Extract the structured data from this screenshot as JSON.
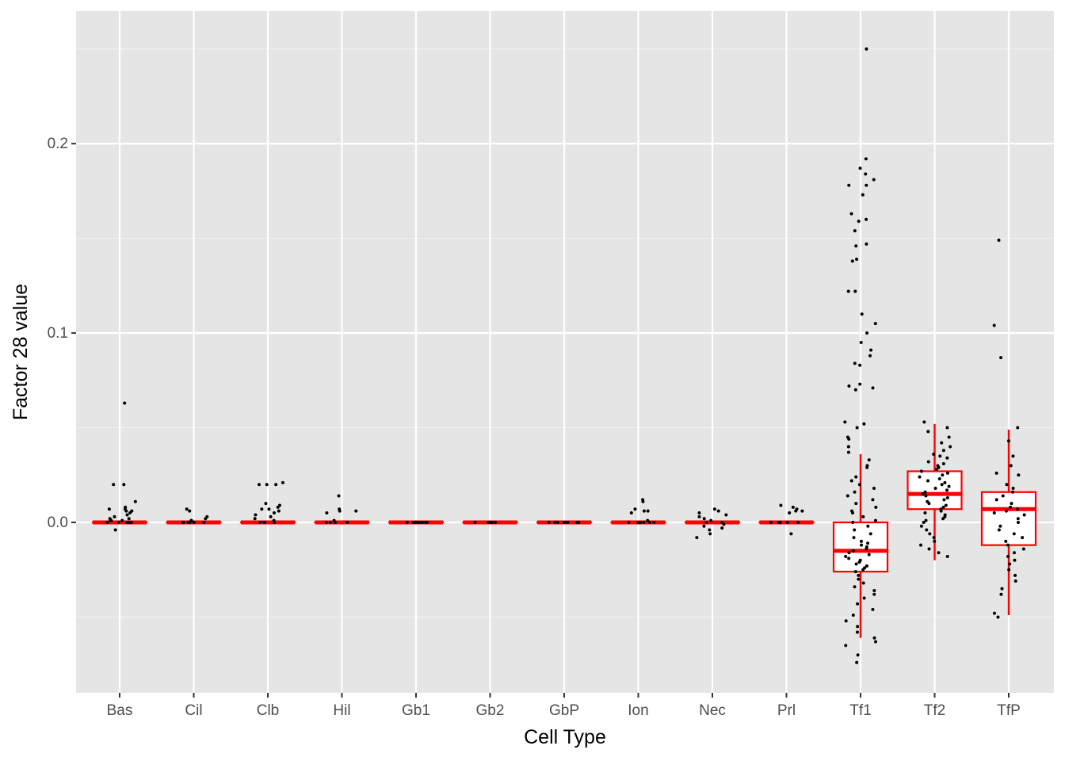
{
  "chart_data": {
    "type": "box",
    "xlabel": "Cell Type",
    "ylabel": "Factor 28 value",
    "ylim": [
      -0.09,
      0.27
    ],
    "yticks": [
      0.0,
      0.1,
      0.2
    ],
    "ytick_labels": [
      "0.0",
      "0.1",
      "0.2"
    ],
    "grid": true,
    "categories": [
      "Bas",
      "Cil",
      "Clb",
      "Hil",
      "Gb1",
      "Gb2",
      "GbP",
      "Ion",
      "Nec",
      "Prl",
      "Tf1",
      "Tf2",
      "TfP"
    ],
    "boxes": [
      {
        "category": "Bas",
        "q1": 0.0,
        "median": 0.0,
        "q3": 0.0,
        "whisker_low": 0.0,
        "whisker_high": 0.0
      },
      {
        "category": "Cil",
        "q1": 0.0,
        "median": 0.0,
        "q3": 0.0,
        "whisker_low": 0.0,
        "whisker_high": 0.0
      },
      {
        "category": "Clb",
        "q1": 0.0,
        "median": 0.0,
        "q3": 0.0,
        "whisker_low": 0.0,
        "whisker_high": 0.0
      },
      {
        "category": "Hil",
        "q1": 0.0,
        "median": 0.0,
        "q3": 0.0,
        "whisker_low": 0.0,
        "whisker_high": 0.0
      },
      {
        "category": "Gb1",
        "q1": 0.0,
        "median": 0.0,
        "q3": 0.0,
        "whisker_low": 0.0,
        "whisker_high": 0.0
      },
      {
        "category": "Gb2",
        "q1": 0.0,
        "median": 0.0,
        "q3": 0.0,
        "whisker_low": 0.0,
        "whisker_high": 0.0
      },
      {
        "category": "GbP",
        "q1": 0.0,
        "median": 0.0,
        "q3": 0.0,
        "whisker_low": 0.0,
        "whisker_high": 0.0
      },
      {
        "category": "Ion",
        "q1": 0.0,
        "median": 0.0,
        "q3": 0.0,
        "whisker_low": 0.0,
        "whisker_high": 0.0
      },
      {
        "category": "Nec",
        "q1": 0.0,
        "median": 0.0,
        "q3": 0.0,
        "whisker_low": 0.0,
        "whisker_high": 0.0
      },
      {
        "category": "Prl",
        "q1": 0.0,
        "median": 0.0,
        "q3": 0.0,
        "whisker_low": 0.0,
        "whisker_high": 0.0
      },
      {
        "category": "Tf1",
        "q1": -0.026,
        "median": -0.015,
        "q3": 0.0,
        "whisker_low": -0.061,
        "whisker_high": 0.036
      },
      {
        "category": "Tf2",
        "q1": 0.007,
        "median": 0.015,
        "q3": 0.027,
        "whisker_low": -0.02,
        "whisker_high": 0.052
      },
      {
        "category": "TfP",
        "q1": -0.012,
        "median": 0.007,
        "q3": 0.016,
        "whisker_low": -0.049,
        "whisker_high": 0.049
      }
    ],
    "points": [
      {
        "category": "Bas",
        "values": [
          0.063,
          0.02,
          0.02,
          0.011,
          0.008,
          0.007,
          0.007,
          0.006,
          0.006,
          0.005,
          0.004,
          0.003,
          0.002,
          0.002,
          0.001,
          0.001,
          0.001,
          0.0,
          0.0,
          0.0,
          0.0,
          0.0,
          0.0,
          -0.004
        ]
      },
      {
        "category": "Cil",
        "values": [
          0.007,
          0.006,
          0.003,
          0.002,
          0.001,
          0.001,
          0.0,
          0.0,
          0.0,
          0.0,
          0.0,
          0.0
        ]
      },
      {
        "category": "Clb",
        "values": [
          0.021,
          0.02,
          0.02,
          0.02,
          0.01,
          0.009,
          0.008,
          0.007,
          0.007,
          0.006,
          0.005,
          0.004,
          0.003,
          0.002,
          0.001,
          0.0,
          0.0,
          0.0,
          0.0
        ]
      },
      {
        "category": "Hil",
        "values": [
          0.014,
          0.007,
          0.006,
          0.006,
          0.005,
          0.001,
          0.0,
          0.0,
          0.0,
          0.0,
          0.0
        ]
      },
      {
        "category": "Gb1",
        "values": [
          0.0,
          0.0,
          0.0,
          0.0,
          0.0,
          0.0,
          0.0,
          0.0
        ]
      },
      {
        "category": "Gb2",
        "values": [
          0.0,
          0.0,
          0.0,
          0.0,
          0.0
        ]
      },
      {
        "category": "GbP",
        "values": [
          0.0,
          0.0,
          0.0,
          0.0,
          0.0,
          0.0,
          0.0,
          0.0
        ]
      },
      {
        "category": "Ion",
        "values": [
          0.012,
          0.011,
          0.007,
          0.006,
          0.006,
          0.005,
          0.001,
          0.0,
          0.0,
          0.0,
          0.0,
          0.0,
          0.0
        ]
      },
      {
        "category": "Nec",
        "values": [
          0.007,
          0.006,
          0.005,
          0.004,
          0.003,
          0.002,
          0.001,
          0.0,
          0.0,
          -0.001,
          -0.002,
          -0.003,
          -0.004,
          -0.006,
          -0.008
        ]
      },
      {
        "category": "Prl",
        "values": [
          0.009,
          0.008,
          0.007,
          0.006,
          0.006,
          0.005,
          0.0,
          0.0,
          0.0,
          0.0,
          0.0,
          -0.006
        ]
      },
      {
        "category": "Tf1",
        "values": [
          0.25,
          0.192,
          0.187,
          0.184,
          0.181,
          0.178,
          0.178,
          0.173,
          0.163,
          0.16,
          0.159,
          0.154,
          0.147,
          0.146,
          0.139,
          0.138,
          0.122,
          0.122,
          0.11,
          0.105,
          0.1,
          0.095,
          0.091,
          0.088,
          0.084,
          0.083,
          0.073,
          0.072,
          0.071,
          0.07,
          0.053,
          0.052,
          0.05,
          0.045,
          0.044,
          0.04,
          0.037,
          0.033,
          0.03,
          0.029,
          0.024,
          0.022,
          0.02,
          0.018,
          0.016,
          0.014,
          0.012,
          0.01,
          0.008,
          0.006,
          0.005,
          0.003,
          0.001,
          0.0,
          -0.002,
          -0.004,
          -0.006,
          -0.008,
          -0.01,
          -0.011,
          -0.012,
          -0.013,
          -0.014,
          -0.015,
          -0.016,
          -0.017,
          -0.018,
          -0.019,
          -0.02,
          -0.021,
          -0.022,
          -0.023,
          -0.024,
          -0.025,
          -0.026,
          -0.028,
          -0.03,
          -0.032,
          -0.034,
          -0.036,
          -0.038,
          -0.04,
          -0.043,
          -0.046,
          -0.049,
          -0.052,
          -0.055,
          -0.058,
          -0.061,
          -0.063,
          -0.065,
          -0.07,
          -0.074
        ]
      },
      {
        "category": "Tf2",
        "values": [
          0.053,
          0.05,
          0.048,
          0.045,
          0.042,
          0.04,
          0.038,
          0.036,
          0.035,
          0.034,
          0.032,
          0.031,
          0.03,
          0.029,
          0.028,
          0.027,
          0.026,
          0.025,
          0.024,
          0.023,
          0.022,
          0.021,
          0.02,
          0.019,
          0.018,
          0.017,
          0.016,
          0.015,
          0.014,
          0.013,
          0.012,
          0.011,
          0.01,
          0.009,
          0.008,
          0.007,
          0.006,
          0.005,
          0.004,
          0.003,
          0.002,
          0.001,
          0.0,
          -0.002,
          -0.004,
          -0.006,
          -0.008,
          -0.01,
          -0.012,
          -0.014,
          -0.016,
          -0.018
        ]
      },
      {
        "category": "TfP",
        "values": [
          0.149,
          0.104,
          0.087,
          0.05,
          0.043,
          0.035,
          0.03,
          0.026,
          0.025,
          0.02,
          0.018,
          0.016,
          0.014,
          0.012,
          0.01,
          0.008,
          0.007,
          0.006,
          0.005,
          0.004,
          0.002,
          0.0,
          -0.002,
          -0.004,
          -0.006,
          -0.008,
          -0.01,
          -0.012,
          -0.014,
          -0.016,
          -0.018,
          -0.02,
          -0.022,
          -0.025,
          -0.028,
          -0.031,
          -0.035,
          -0.038,
          -0.048,
          -0.05
        ]
      }
    ]
  }
}
